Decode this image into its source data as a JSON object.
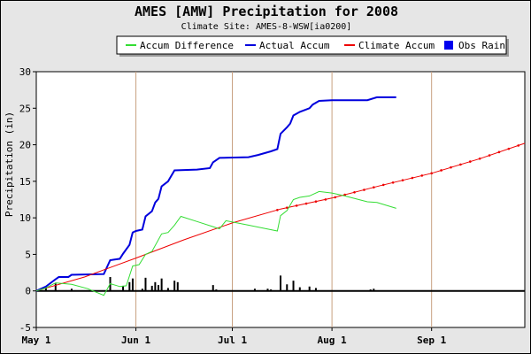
{
  "chart_data": {
    "type": "line",
    "title": "AMES [AMW] Precipitation for 2008",
    "subtitle": "Climate Site: AMES-8-WSW[ia0200]",
    "ylabel": "Precipitation (in)",
    "xlabel": "",
    "x_range": [
      "2008-05-01",
      "2008-09-30"
    ],
    "ylim": [
      -5,
      30
    ],
    "yticks": [
      -5,
      0,
      5,
      10,
      15,
      20,
      25,
      30
    ],
    "xticks": [
      {
        "label": "May 1",
        "date": "2008-05-01"
      },
      {
        "label": "Jun 1",
        "date": "2008-06-01"
      },
      {
        "label": "Jul 1",
        "date": "2008-07-01"
      },
      {
        "label": "Aug 1",
        "date": "2008-08-01"
      },
      {
        "label": "Sep 1",
        "date": "2008-09-01"
      }
    ],
    "grid": "vertical-month-lines",
    "legend_position": "top",
    "legend": [
      {
        "name": "Accum Difference",
        "color": "#33dd33",
        "kind": "line"
      },
      {
        "name": "Actual Accum",
        "color": "#0000dd",
        "kind": "line"
      },
      {
        "name": "Climate Accum",
        "color": "#ee0000",
        "kind": "line"
      },
      {
        "name": "Obs Rain",
        "color": "#0000ee",
        "kind": "box"
      }
    ],
    "series": [
      {
        "name": "Actual Accum",
        "color": "#0000dd",
        "points": [
          [
            "2008-05-01",
            0
          ],
          [
            "2008-05-04",
            0.6
          ],
          [
            "2008-05-07",
            1.6
          ],
          [
            "2008-05-08",
            1.9
          ],
          [
            "2008-05-11",
            1.9
          ],
          [
            "2008-05-12",
            2.2
          ],
          [
            "2008-05-22",
            2.3
          ],
          [
            "2008-05-24",
            4.2
          ],
          [
            "2008-05-27",
            4.4
          ],
          [
            "2008-05-28",
            5.1
          ],
          [
            "2008-05-30",
            6.3
          ],
          [
            "2008-05-31",
            8.0
          ],
          [
            "2008-06-01",
            8.2
          ],
          [
            "2008-06-03",
            8.4
          ],
          [
            "2008-06-04",
            10.2
          ],
          [
            "2008-06-06",
            10.9
          ],
          [
            "2008-06-07",
            12.1
          ],
          [
            "2008-06-08",
            12.6
          ],
          [
            "2008-06-09",
            14.3
          ],
          [
            "2008-06-11",
            15.0
          ],
          [
            "2008-06-13",
            16.5
          ],
          [
            "2008-06-20",
            16.6
          ],
          [
            "2008-06-24",
            16.8
          ],
          [
            "2008-06-25",
            17.6
          ],
          [
            "2008-06-27",
            18.2
          ],
          [
            "2008-07-06",
            18.3
          ],
          [
            "2008-07-09",
            18.6
          ],
          [
            "2008-07-13",
            19.1
          ],
          [
            "2008-07-15",
            19.4
          ],
          [
            "2008-07-16",
            21.5
          ],
          [
            "2008-07-18",
            22.4
          ],
          [
            "2008-07-19",
            22.9
          ],
          [
            "2008-07-20",
            24.0
          ],
          [
            "2008-07-22",
            24.5
          ],
          [
            "2008-07-25",
            25.0
          ],
          [
            "2008-07-26",
            25.5
          ],
          [
            "2008-07-28",
            26.0
          ],
          [
            "2008-08-01",
            26.1
          ],
          [
            "2008-08-12",
            26.1
          ],
          [
            "2008-08-15",
            26.5
          ],
          [
            "2008-08-21",
            26.5
          ]
        ]
      },
      {
        "name": "Climate Accum",
        "color": "#ee0000",
        "points": [
          [
            "2008-05-01",
            0
          ],
          [
            "2008-05-16",
            1.9
          ],
          [
            "2008-06-01",
            4.5
          ],
          [
            "2008-06-16",
            7.0
          ],
          [
            "2008-07-01",
            9.3
          ],
          [
            "2008-07-16",
            11.2
          ],
          [
            "2008-08-01",
            12.7
          ],
          [
            "2008-08-16",
            14.4
          ],
          [
            "2008-09-01",
            16.1
          ],
          [
            "2008-09-16",
            18.1
          ],
          [
            "2008-09-30",
            20.2
          ]
        ]
      },
      {
        "name": "Accum Difference",
        "color": "#33dd33",
        "points": [
          [
            "2008-05-01",
            0
          ],
          [
            "2008-05-04",
            0.4
          ],
          [
            "2008-05-07",
            1.1
          ],
          [
            "2008-05-12",
            0.9
          ],
          [
            "2008-05-17",
            0.3
          ],
          [
            "2008-05-22",
            -0.6
          ],
          [
            "2008-05-24",
            1.0
          ],
          [
            "2008-05-27",
            0.6
          ],
          [
            "2008-05-29",
            0.7
          ],
          [
            "2008-05-31",
            3.4
          ],
          [
            "2008-06-02",
            3.6
          ],
          [
            "2008-06-04",
            5.0
          ],
          [
            "2008-06-06",
            5.4
          ],
          [
            "2008-06-09",
            7.8
          ],
          [
            "2008-06-11",
            8.0
          ],
          [
            "2008-06-13",
            9.0
          ],
          [
            "2008-06-15",
            10.2
          ],
          [
            "2008-06-20",
            9.5
          ],
          [
            "2008-06-27",
            8.5
          ],
          [
            "2008-06-29",
            9.6
          ],
          [
            "2008-07-06",
            9.0
          ],
          [
            "2008-07-15",
            8.2
          ],
          [
            "2008-07-16",
            10.3
          ],
          [
            "2008-07-18",
            11.0
          ],
          [
            "2008-07-20",
            12.5
          ],
          [
            "2008-07-22",
            12.8
          ],
          [
            "2008-07-25",
            13.0
          ],
          [
            "2008-07-28",
            13.6
          ],
          [
            "2008-08-01",
            13.4
          ],
          [
            "2008-08-05",
            13.0
          ],
          [
            "2008-08-12",
            12.2
          ],
          [
            "2008-08-15",
            12.1
          ],
          [
            "2008-08-21",
            11.3
          ]
        ]
      },
      {
        "name": "Obs Rain",
        "color": "#000000",
        "kind": "bars",
        "points": [
          [
            "2008-05-04",
            0.6
          ],
          [
            "2008-05-07",
            1.0
          ],
          [
            "2008-05-12",
            0.3
          ],
          [
            "2008-05-24",
            1.9
          ],
          [
            "2008-05-28",
            0.7
          ],
          [
            "2008-05-30",
            1.2
          ],
          [
            "2008-05-31",
            1.7
          ],
          [
            "2008-06-03",
            0.3
          ],
          [
            "2008-06-04",
            1.8
          ],
          [
            "2008-06-06",
            0.7
          ],
          [
            "2008-06-07",
            1.2
          ],
          [
            "2008-06-08",
            0.8
          ],
          [
            "2008-06-09",
            1.7
          ],
          [
            "2008-06-11",
            0.4
          ],
          [
            "2008-06-13",
            1.4
          ],
          [
            "2008-06-14",
            1.2
          ],
          [
            "2008-06-25",
            0.8
          ],
          [
            "2008-06-26",
            0.2
          ],
          [
            "2008-07-08",
            0.3
          ],
          [
            "2008-07-12",
            0.3
          ],
          [
            "2008-07-13",
            0.2
          ],
          [
            "2008-07-16",
            2.1
          ],
          [
            "2008-07-18",
            0.9
          ],
          [
            "2008-07-20",
            1.4
          ],
          [
            "2008-07-22",
            0.5
          ],
          [
            "2008-07-25",
            0.6
          ],
          [
            "2008-07-27",
            0.4
          ],
          [
            "2008-08-13",
            0.2
          ],
          [
            "2008-08-14",
            0.3
          ]
        ]
      }
    ]
  }
}
